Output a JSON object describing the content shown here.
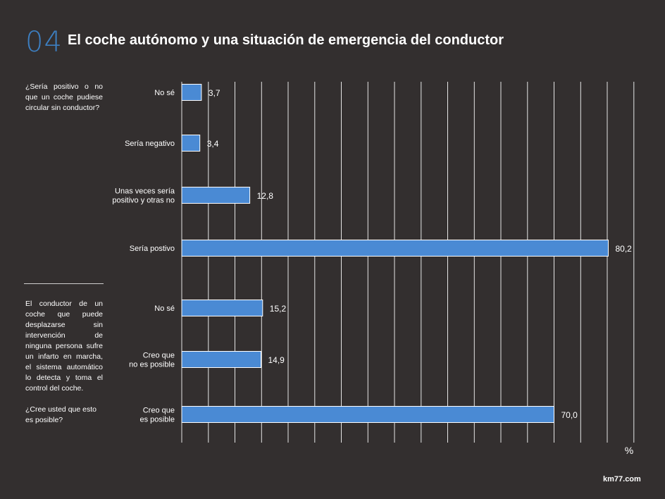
{
  "header": {
    "section_number": "04",
    "title": "El coche autónomo y una situación de emergencia del conductor"
  },
  "questions": {
    "q1": "¿Sería positivo o no que un coche pudiese circular sin conductor?",
    "q2_text": "El conductor de un coche que puede desplazarse sin intervención de ninguna persona sufre un infarto en marcha, el sistema automático lo detecta y toma el control del coche.",
    "q2_follow": "¿Cree usted que esto es posible?"
  },
  "footer": {
    "brand": "km77.com"
  },
  "colors": {
    "background": "#332f2f",
    "bar": "#4a8ad4",
    "grid": "#e6e6e6",
    "accent": "#3d7fc1"
  },
  "chart_data": {
    "type": "bar",
    "orientation": "horizontal",
    "unit_label": "%",
    "xlim": [
      0,
      85
    ],
    "grid": true,
    "groups": [
      {
        "question": "¿Sería positivo o no que un coche pudiese circular sin conductor?",
        "categories": [
          [
            "No sé"
          ],
          [
            "Sería negativo"
          ],
          [
            "Unas veces sería",
            "positivo y otras no"
          ],
          [
            "Sería postivo"
          ]
        ],
        "values": [
          3.7,
          3.4,
          12.8,
          80.2
        ],
        "value_labels": [
          "3,7",
          "3,4",
          "12,8",
          "80,2"
        ]
      },
      {
        "question": "¿Cree usted que esto es posible?",
        "categories": [
          [
            "No sé"
          ],
          [
            "Creo que",
            "no es posible"
          ],
          [
            "Creo que",
            "es posible"
          ]
        ],
        "values": [
          15.2,
          14.9,
          70.0
        ],
        "value_labels": [
          "15,2",
          "14,9",
          "70,0"
        ]
      }
    ]
  }
}
